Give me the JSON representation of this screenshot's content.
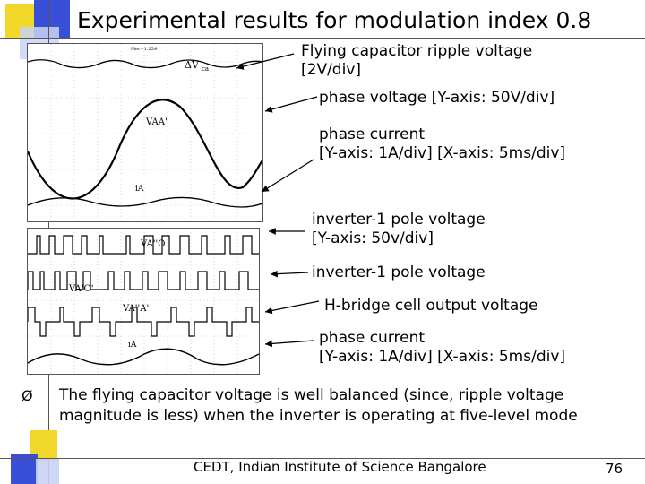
{
  "title": "Experimental results for modulation index 0.8",
  "annotations": {
    "a1": "Flying capacitor ripple voltage",
    "a1b": "[2V/div]",
    "a2": "phase voltage [Y-axis: 50V/div]",
    "a3": "phase current",
    "a3b": "[Y-axis: 1A/div] [X-axis: 5ms/div]",
    "a4": "inverter-1 pole voltage",
    "a4b": "[Y-axis: 50v/div]",
    "a5": "inverter-1 pole voltage",
    "a6": "H-bridge cell output voltage",
    "a7": "phase current",
    "a7b": "[Y-axis: 1A/div] [X-axis: 5ms/div]"
  },
  "scope1": {
    "header_left": "Mer=1.25#",
    "header_right": "ΔVca",
    "l_ripple": "ΔV",
    "l_ripple_sub": "ca",
    "l_phase": "VAA'",
    "l_current": "iA"
  },
  "scope2": {
    "l1": "VA''O",
    "l2": "VA'O'",
    "l3": "VA''A'",
    "l4": "iA"
  },
  "bullet": {
    "marker": "Ø",
    "text": "The flying capacitor voltage is well balanced (since, ripple voltage magnitude is less) when the inverter is operating at five-level mode"
  },
  "footer": "CEDT, Indian Institute of Science Bangalore",
  "page_number": "76",
  "colors": {
    "deco_blue": "#3a4fd8",
    "deco_yellow": "#f2d82a",
    "deco_light": "#c9d3f5"
  }
}
